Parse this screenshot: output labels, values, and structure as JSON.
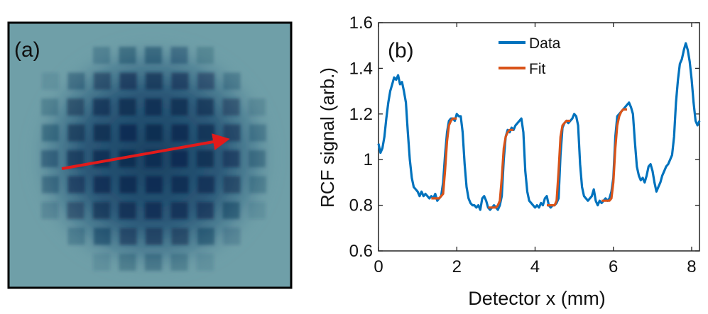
{
  "panel_a": {
    "label": "(a)",
    "colors": {
      "background": "#6f9fa8",
      "squares": "#163a5e",
      "arrow": "#e21b1b",
      "frame": "#000000"
    }
  },
  "chart_data": {
    "type": "line",
    "panel_label": "(b)",
    "title": "",
    "xlabel": "Detector x (mm)",
    "ylabel": "RCF signal (arb.)",
    "xlim": [
      0,
      8.2
    ],
    "ylim": [
      0.6,
      1.6
    ],
    "xticks": [
      0,
      2,
      4,
      6,
      8
    ],
    "yticks": [
      0.6,
      0.8,
      1.0,
      1.2,
      1.4,
      1.6
    ],
    "xtick_labels": [
      "0",
      "2",
      "4",
      "6",
      "8"
    ],
    "ytick_labels": [
      "0.6",
      "0.8",
      "1",
      "1.2",
      "1.4",
      "1.6"
    ],
    "grid": false,
    "legend_position": "top-center",
    "series": [
      {
        "name": "Data",
        "color": "#0072BD",
        "x": [
          0.0,
          0.05,
          0.1,
          0.15,
          0.2,
          0.25,
          0.3,
          0.35,
          0.4,
          0.45,
          0.5,
          0.55,
          0.6,
          0.65,
          0.7,
          0.75,
          0.8,
          0.85,
          0.9,
          0.95,
          1.0,
          1.05,
          1.1,
          1.15,
          1.2,
          1.25,
          1.3,
          1.35,
          1.4,
          1.45,
          1.5,
          1.55,
          1.6,
          1.65,
          1.7,
          1.75,
          1.8,
          1.85,
          1.9,
          1.95,
          2.0,
          2.05,
          2.1,
          2.15,
          2.2,
          2.25,
          2.3,
          2.35,
          2.4,
          2.45,
          2.5,
          2.55,
          2.6,
          2.65,
          2.7,
          2.75,
          2.8,
          2.85,
          2.9,
          2.95,
          3.0,
          3.05,
          3.1,
          3.15,
          3.2,
          3.25,
          3.3,
          3.35,
          3.4,
          3.45,
          3.5,
          3.55,
          3.6,
          3.65,
          3.7,
          3.75,
          3.8,
          3.85,
          3.9,
          3.95,
          4.0,
          4.05,
          4.1,
          4.15,
          4.2,
          4.25,
          4.3,
          4.35,
          4.4,
          4.45,
          4.5,
          4.55,
          4.6,
          4.65,
          4.7,
          4.75,
          4.8,
          4.85,
          4.9,
          4.95,
          5.0,
          5.05,
          5.1,
          5.15,
          5.2,
          5.25,
          5.3,
          5.35,
          5.4,
          5.45,
          5.5,
          5.55,
          5.6,
          5.65,
          5.7,
          5.75,
          5.8,
          5.85,
          5.9,
          5.95,
          6.0,
          6.05,
          6.1,
          6.15,
          6.2,
          6.25,
          6.3,
          6.35,
          6.4,
          6.45,
          6.5,
          6.55,
          6.6,
          6.65,
          6.7,
          6.75,
          6.8,
          6.85,
          6.9,
          6.95,
          7.0,
          7.05,
          7.1,
          7.15,
          7.2,
          7.25,
          7.3,
          7.35,
          7.4,
          7.45,
          7.5,
          7.55,
          7.6,
          7.65,
          7.7,
          7.75,
          7.8,
          7.85,
          7.9,
          7.95,
          8.0,
          8.05,
          8.1,
          8.15,
          8.2
        ],
        "y": [
          1.07,
          1.03,
          1.05,
          1.1,
          1.18,
          1.25,
          1.3,
          1.33,
          1.36,
          1.35,
          1.37,
          1.33,
          1.34,
          1.3,
          1.25,
          1.12,
          1.0,
          0.92,
          0.88,
          0.87,
          0.86,
          0.84,
          0.86,
          0.84,
          0.85,
          0.84,
          0.83,
          0.84,
          0.83,
          0.85,
          0.82,
          0.83,
          0.84,
          0.9,
          1.02,
          1.12,
          1.17,
          1.18,
          1.18,
          1.17,
          1.2,
          1.19,
          1.19,
          1.12,
          0.98,
          0.88,
          0.83,
          0.81,
          0.8,
          0.8,
          0.79,
          0.8,
          0.78,
          0.83,
          0.84,
          0.82,
          0.79,
          0.78,
          0.79,
          0.8,
          0.79,
          0.78,
          0.8,
          0.84,
          1.0,
          1.1,
          1.13,
          1.12,
          1.14,
          1.13,
          1.15,
          1.16,
          1.17,
          1.18,
          1.12,
          0.95,
          0.86,
          0.82,
          0.81,
          0.8,
          0.79,
          0.8,
          0.79,
          0.81,
          0.8,
          0.83,
          0.84,
          0.8,
          0.79,
          0.8,
          0.8,
          0.81,
          0.83,
          1.02,
          1.14,
          1.16,
          1.17,
          1.16,
          1.17,
          1.18,
          1.2,
          1.19,
          1.15,
          0.98,
          0.88,
          0.84,
          0.83,
          0.82,
          0.83,
          0.84,
          0.87,
          0.82,
          0.8,
          0.82,
          0.81,
          0.82,
          0.83,
          0.82,
          0.83,
          0.86,
          0.92,
          1.1,
          1.19,
          1.2,
          1.21,
          1.22,
          1.23,
          1.24,
          1.25,
          1.23,
          1.2,
          1.08,
          0.97,
          0.93,
          0.91,
          0.92,
          0.9,
          0.93,
          0.97,
          0.98,
          0.95,
          0.9,
          0.86,
          0.88,
          0.9,
          0.93,
          0.95,
          0.97,
          0.98,
          1.0,
          1.02,
          1.1,
          1.25,
          1.35,
          1.42,
          1.44,
          1.48,
          1.51,
          1.48,
          1.43,
          1.35,
          1.25,
          1.17,
          1.15,
          1.17
        ]
      },
      {
        "name": "Fit",
        "color": "#D95319",
        "segments": [
          {
            "x": [
              1.35,
              1.45,
              1.55,
              1.65,
              1.7,
              1.75,
              1.8,
              1.85,
              1.9,
              1.95,
              2.0
            ],
            "y": [
              0.83,
              0.83,
              0.83,
              0.85,
              0.95,
              1.08,
              1.15,
              1.17,
              1.18,
              1.18,
              1.18
            ]
          },
          {
            "x": [
              2.8,
              2.9,
              3.0,
              3.05,
              3.1,
              3.15,
              3.2,
              3.25,
              3.3,
              3.35,
              3.4,
              3.45
            ],
            "y": [
              0.79,
              0.79,
              0.79,
              0.8,
              0.82,
              0.92,
              1.05,
              1.1,
              1.12,
              1.13,
              1.13,
              1.13
            ]
          },
          {
            "x": [
              4.3,
              4.4,
              4.5,
              4.55,
              4.6,
              4.65,
              4.7,
              4.75,
              4.8,
              4.85,
              4.9
            ],
            "y": [
              0.8,
              0.8,
              0.8,
              0.82,
              0.95,
              1.1,
              1.15,
              1.16,
              1.17,
              1.17,
              1.17
            ]
          },
          {
            "x": [
              5.7,
              5.8,
              5.9,
              5.95,
              6.0,
              6.05,
              6.1,
              6.15,
              6.2,
              6.25,
              6.3,
              6.35
            ],
            "y": [
              0.82,
              0.82,
              0.82,
              0.83,
              0.9,
              1.05,
              1.15,
              1.19,
              1.21,
              1.22,
              1.22,
              1.22
            ]
          }
        ]
      }
    ]
  }
}
